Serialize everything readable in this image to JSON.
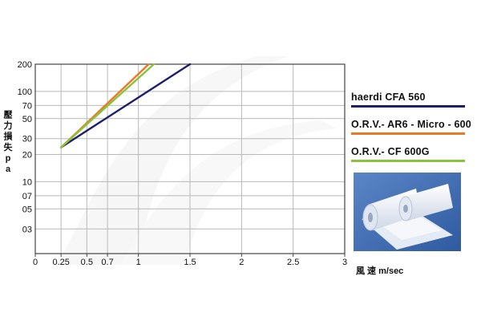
{
  "chart_data": {
    "type": "line",
    "x_ticks": [
      "0",
      "0.25",
      "0.5",
      "0.7",
      "1",
      "1.5",
      "2",
      "2.5",
      "3"
    ],
    "y_ticks": [
      "200",
      "100",
      "70",
      "50",
      "30",
      "20",
      "10",
      "07",
      "05",
      "03"
    ],
    "xlabel": "風 速 m/sec",
    "ylabel": "壓力損失pa",
    "xlim": [
      0,
      3
    ],
    "ylim": [
      1.6,
      200
    ],
    "grid": true,
    "legend_position": "right",
    "series": [
      {
        "name": "haerdi CFA 560",
        "color": "#1e1e6b",
        "x": [
          0.25,
          1.5
        ],
        "y": [
          24,
          200
        ]
      },
      {
        "name": "O.R.V.- AR6 - Micro - 600",
        "color": "#e87a2a",
        "x": [
          0.25,
          1.1
        ],
        "y": [
          24,
          200
        ]
      },
      {
        "name": "O.R.V.- CF 600G",
        "color": "#8ac33a",
        "x": [
          0.25,
          1.15
        ],
        "y": [
          24,
          200
        ]
      }
    ]
  }
}
